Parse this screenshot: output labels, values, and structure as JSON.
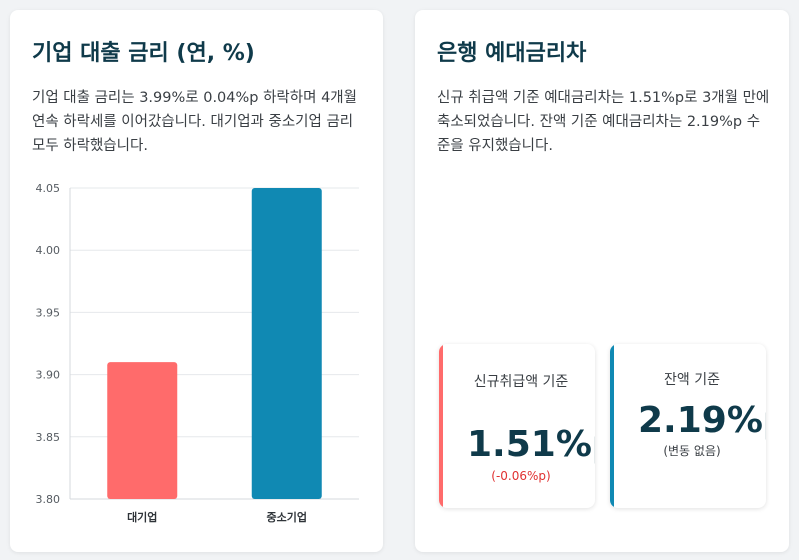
{
  "left_card": {
    "title": "기업 대출 금리 (연, %)",
    "description": "기업 대출 금리는 3.99%로 0.04%p 하락하며 4개월 연속 하락세를 이어갔습니다. 대기업과 중소기업 금리 모두 하락했습니다."
  },
  "right_card": {
    "title": "은행 예대금리차",
    "description": "신규 취급액 기준 예대금리차는 1.51%p로 3개월 만에 축소되었습니다. 잔액 기준 예대금리차는 2.19%p 수준을 유지했습니다.",
    "stats": [
      {
        "label": "신규취급액 기준",
        "value": "1.51%p",
        "change": "(-0.06%p)",
        "accent": "#ff6b6b",
        "change_color": "#e03131"
      },
      {
        "label": "잔액 기준",
        "value": "2.19%p",
        "change": "(변동 없음)",
        "accent": "#1089b3",
        "change_color": "#3a3f44"
      }
    ]
  },
  "chart_data": {
    "type": "bar",
    "categories": [
      "대기업",
      "중소기업"
    ],
    "values": [
      3.91,
      4.05
    ],
    "colors": [
      "#ff6b6b",
      "#1089b3"
    ],
    "yticks": [
      "3.80",
      "3.85",
      "3.90",
      "3.95",
      "4.00",
      "4.05"
    ],
    "ylim": [
      3.8,
      4.05
    ],
    "grid": true,
    "legend": "none"
  }
}
